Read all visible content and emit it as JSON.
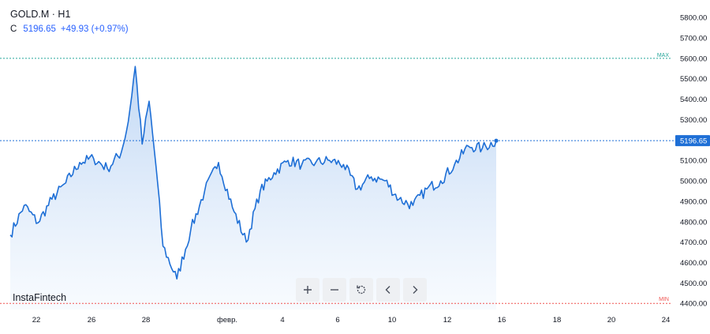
{
  "header": {
    "symbol_label": "GOLD.M · H1",
    "close_label": "C",
    "close_value": "5196.65",
    "change": "+49.93 (+0.97%)"
  },
  "brand": "InstaFintech",
  "toolbar": [
    {
      "icon": "plus-icon"
    },
    {
      "icon": "minus-icon"
    },
    {
      "icon": "reset-icon"
    },
    {
      "icon": "chevron-left-icon"
    },
    {
      "icon": "chevron-right-icon"
    }
  ],
  "colors": {
    "line": "#1e6fd6",
    "area_top": "#b9d3f3",
    "area_bottom": "#f3f8fe",
    "max_line": "#26a69a",
    "min_line": "#ef5350",
    "price_label_bg": "#1e6fd6"
  },
  "chart_data": {
    "type": "area",
    "y_ticks": [
      "5800.00",
      "5700.00",
      "5600.00",
      "5500.00",
      "5400.00",
      "5300.00",
      "5100.00",
      "5000.00",
      "4900.00",
      "4800.00",
      "4700.00",
      "4600.00",
      "4500.00",
      "4400.00"
    ],
    "x_ticks": [
      "22",
      "26",
      "28",
      "февр.",
      "4",
      "6",
      "10",
      "12",
      "16",
      "18",
      "20",
      "24"
    ],
    "ylim": [
      4370,
      5870
    ],
    "grid": false,
    "max_label": "MAX",
    "max_value": 5600,
    "min_label": "MIN",
    "min_value": 4400,
    "last_price_label": "5196.65",
    "last_price": 5196.65,
    "x": [
      "01-20",
      "01-21",
      "01-22",
      "01-23",
      "01-24",
      "01-25",
      "01-26",
      "01-27",
      "01-28",
      "01-28 12h",
      "01-29",
      "01-29 12h",
      "01-30",
      "01-30 12h",
      "01-31",
      "02-01",
      "02-02",
      "02-03",
      "02-04",
      "02-05",
      "02-06",
      "02-07",
      "02-08",
      "02-09",
      "02-10",
      "02-11",
      "02-12",
      "02-13",
      "02-14",
      "02-15",
      "02-16",
      "02-17",
      "02-18",
      "02-19",
      "02-20",
      "02-21",
      "02-22",
      "02-23",
      "02-24"
    ],
    "values": [
      4735,
      4880,
      4795,
      4910,
      4990,
      5090,
      5110,
      5060,
      5140,
      5290,
      5560,
      5180,
      5390,
      5070,
      4680,
      4520,
      4760,
      4950,
      5090,
      4870,
      4700,
      4950,
      5040,
      5100,
      5080,
      5090,
      5100,
      5080,
      4960,
      5020,
      5000,
      4910,
      4880,
      4960,
      5000,
      5080,
      5170,
      5160,
      5196.65
    ]
  }
}
